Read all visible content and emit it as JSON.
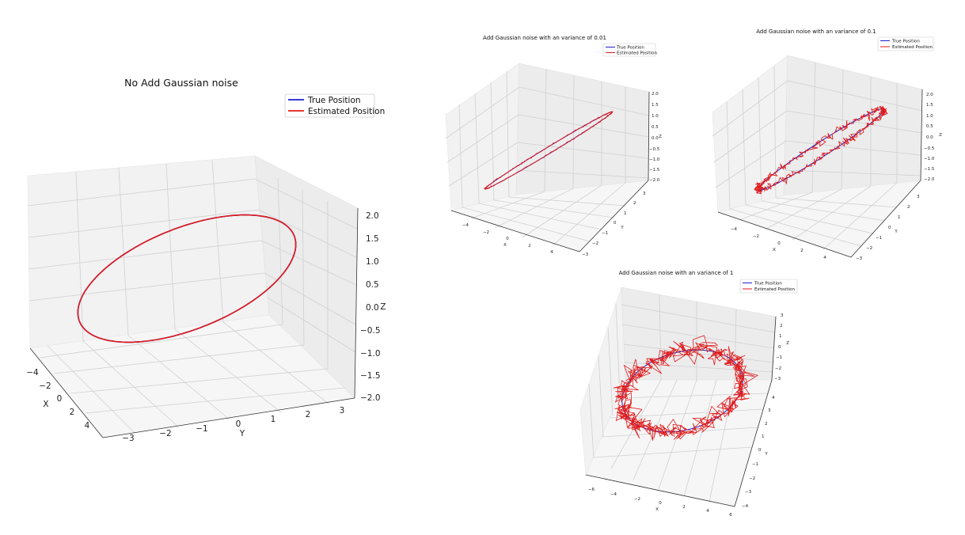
{
  "chart_data": [
    {
      "type": "line3d",
      "title": "No Add Gaussian noise",
      "xlabel": "X",
      "ylabel": "Y",
      "zlabel": "Z",
      "xticks": [
        "−4",
        "−2",
        "0",
        "2",
        "4"
      ],
      "yticks": [
        "−3",
        "−2",
        "−1",
        "0",
        "1",
        "2",
        "3"
      ],
      "zticks": [
        "2.0",
        "1.5",
        "1.0",
        "0.5",
        "0.0",
        "−0.5",
        "−1.0",
        "−1.5",
        "−2.0"
      ],
      "legend": {
        "position": "top-right",
        "entries": [
          "True Position",
          "Estimated Position"
        ]
      },
      "noise_variance": 0,
      "series": [
        {
          "name": "True Position",
          "color": "#1f1fcc",
          "curve": "x = 4 cos(t), y = 3 sin(t), z = 2 sin(t)"
        },
        {
          "name": "Estimated Position",
          "color": "#e01b1b",
          "curve": "True Position + Gaussian noise"
        }
      ]
    },
    {
      "type": "line3d",
      "title": "Add Gaussian noise with an variance of 0.01",
      "xlabel": "X",
      "ylabel": "Y",
      "zlabel": "Z",
      "xticks": [
        "−4",
        "−2",
        "0",
        "2",
        "4"
      ],
      "yticks": [
        "3",
        "2",
        "1",
        "0",
        "−1",
        "−2",
        "−3"
      ],
      "zticks": [
        "2.0",
        "1.5",
        "1.0",
        "0.5",
        "0.0",
        "−0.5",
        "−1.0",
        "−1.5",
        "−2.0"
      ],
      "legend": {
        "position": "top-right",
        "entries": [
          "True Position",
          "Estimated Position"
        ]
      },
      "noise_variance": 0.01
    },
    {
      "type": "line3d",
      "title": "Add Gaussian noise with an variance of 0.1",
      "xlabel": "X",
      "ylabel": "Y",
      "zlabel": "Z",
      "xticks": [
        "−4",
        "−2",
        "0",
        "2",
        "4"
      ],
      "yticks": [
        "3",
        "2",
        "1",
        "0",
        "−1",
        "−2",
        "−3"
      ],
      "zticks": [
        "2.0",
        "1.5",
        "1.0",
        "0.5",
        "0.0",
        "−0.5",
        "−1.0",
        "−1.5",
        "−2.0"
      ],
      "legend": {
        "position": "top-right",
        "entries": [
          "True Position",
          "Estimated Position"
        ]
      },
      "noise_variance": 0.1
    },
    {
      "type": "line3d",
      "title": "Add Gaussian noise with an variance of 1",
      "xlabel": "X",
      "ylabel": "Y",
      "zlabel": "Z",
      "xticks": [
        "−6",
        "−4",
        "−2",
        "0",
        "2",
        "4",
        "6"
      ],
      "yticks": [
        "4",
        "3",
        "2",
        "1",
        "0",
        "−1",
        "−2",
        "−3",
        "−4"
      ],
      "zticks": [
        "3",
        "2",
        "1",
        "0",
        "−1",
        "−2",
        "−3"
      ],
      "legend": {
        "position": "top-right",
        "entries": [
          "True Position",
          "Estimated Position"
        ]
      },
      "noise_variance": 1
    }
  ]
}
